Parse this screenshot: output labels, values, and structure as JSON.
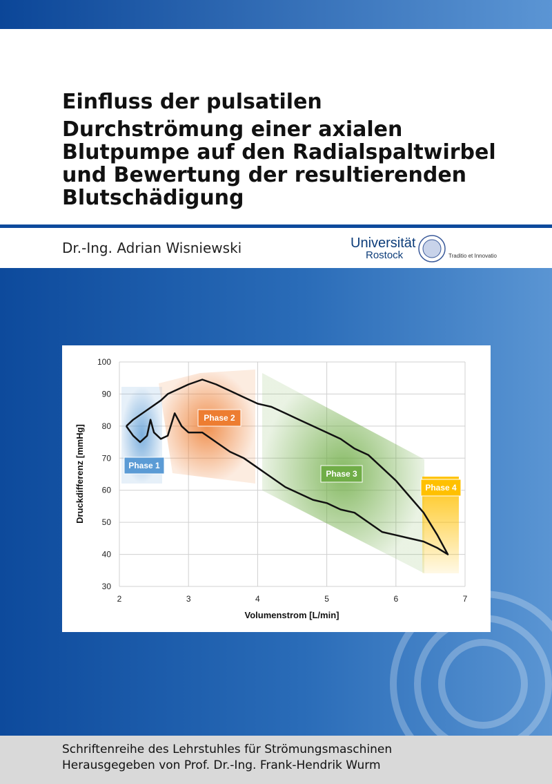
{
  "title": [
    "Einfluss der pulsatilen",
    "Durchströmung einer axialen",
    "Blutpumpe auf den Radialspaltwirbel",
    "und Bewertung der resultierenden",
    "Blutschädigung"
  ],
  "author": "Dr.-Ing. Adrian Wisniewski",
  "logo": {
    "name": "Universität",
    "city": "Rostock",
    "motto": "Traditio et Innovatio"
  },
  "footer": [
    "Schriftenreihe des Lehrstuhles für Strömungsmaschinen",
    "Herausgegeben von Prof. Dr.-Ing. Frank-Hendrik Wurm"
  ],
  "chart_data": {
    "type": "line",
    "x_label": "Volumenstrom  [L/min]",
    "y_label": "Druckdifferenz [mmHg]",
    "x": [
      2.1,
      2.2,
      2.4,
      2.6,
      2.7,
      2.9,
      3.0,
      3.2,
      3.4,
      3.6,
      3.8,
      4.0,
      4.2,
      4.4,
      4.6,
      4.8,
      5.0,
      5.2,
      5.4,
      5.6,
      5.8,
      6.0,
      6.2,
      6.4,
      6.6,
      6.75,
      6.6,
      6.4,
      6.2,
      6.0,
      5.8,
      5.6,
      5.4,
      5.2,
      5.0,
      4.8,
      4.6,
      4.4,
      4.2,
      4.0,
      3.8,
      3.6,
      3.4,
      3.2,
      3.0,
      2.9,
      2.8,
      2.7,
      2.6,
      2.5,
      2.45,
      2.4,
      2.3,
      2.2,
      2.1
    ],
    "values": [
      80,
      82,
      85,
      88,
      90,
      92,
      93,
      94.5,
      93,
      91,
      89,
      87,
      86,
      84,
      82,
      80,
      78,
      76,
      73,
      71,
      67,
      63,
      58,
      53,
      46,
      40,
      42,
      44,
      45,
      46,
      47,
      50,
      53,
      54,
      56,
      57,
      59,
      61,
      64,
      67,
      70,
      72,
      75,
      78,
      78,
      80,
      84,
      77,
      76,
      78,
      82,
      77,
      75,
      77,
      80
    ],
    "color": "#111111",
    "xlim": [
      2,
      7
    ],
    "xticks": [
      2,
      3,
      4,
      5,
      6,
      7
    ],
    "ylim": [
      30,
      100
    ],
    "yticks": [
      30,
      40,
      50,
      60,
      70,
      80,
      90,
      100
    ],
    "grid": true,
    "annotations": [
      "Phase 1",
      "Phase 2",
      "Phase 3",
      "Phase 4"
    ]
  }
}
